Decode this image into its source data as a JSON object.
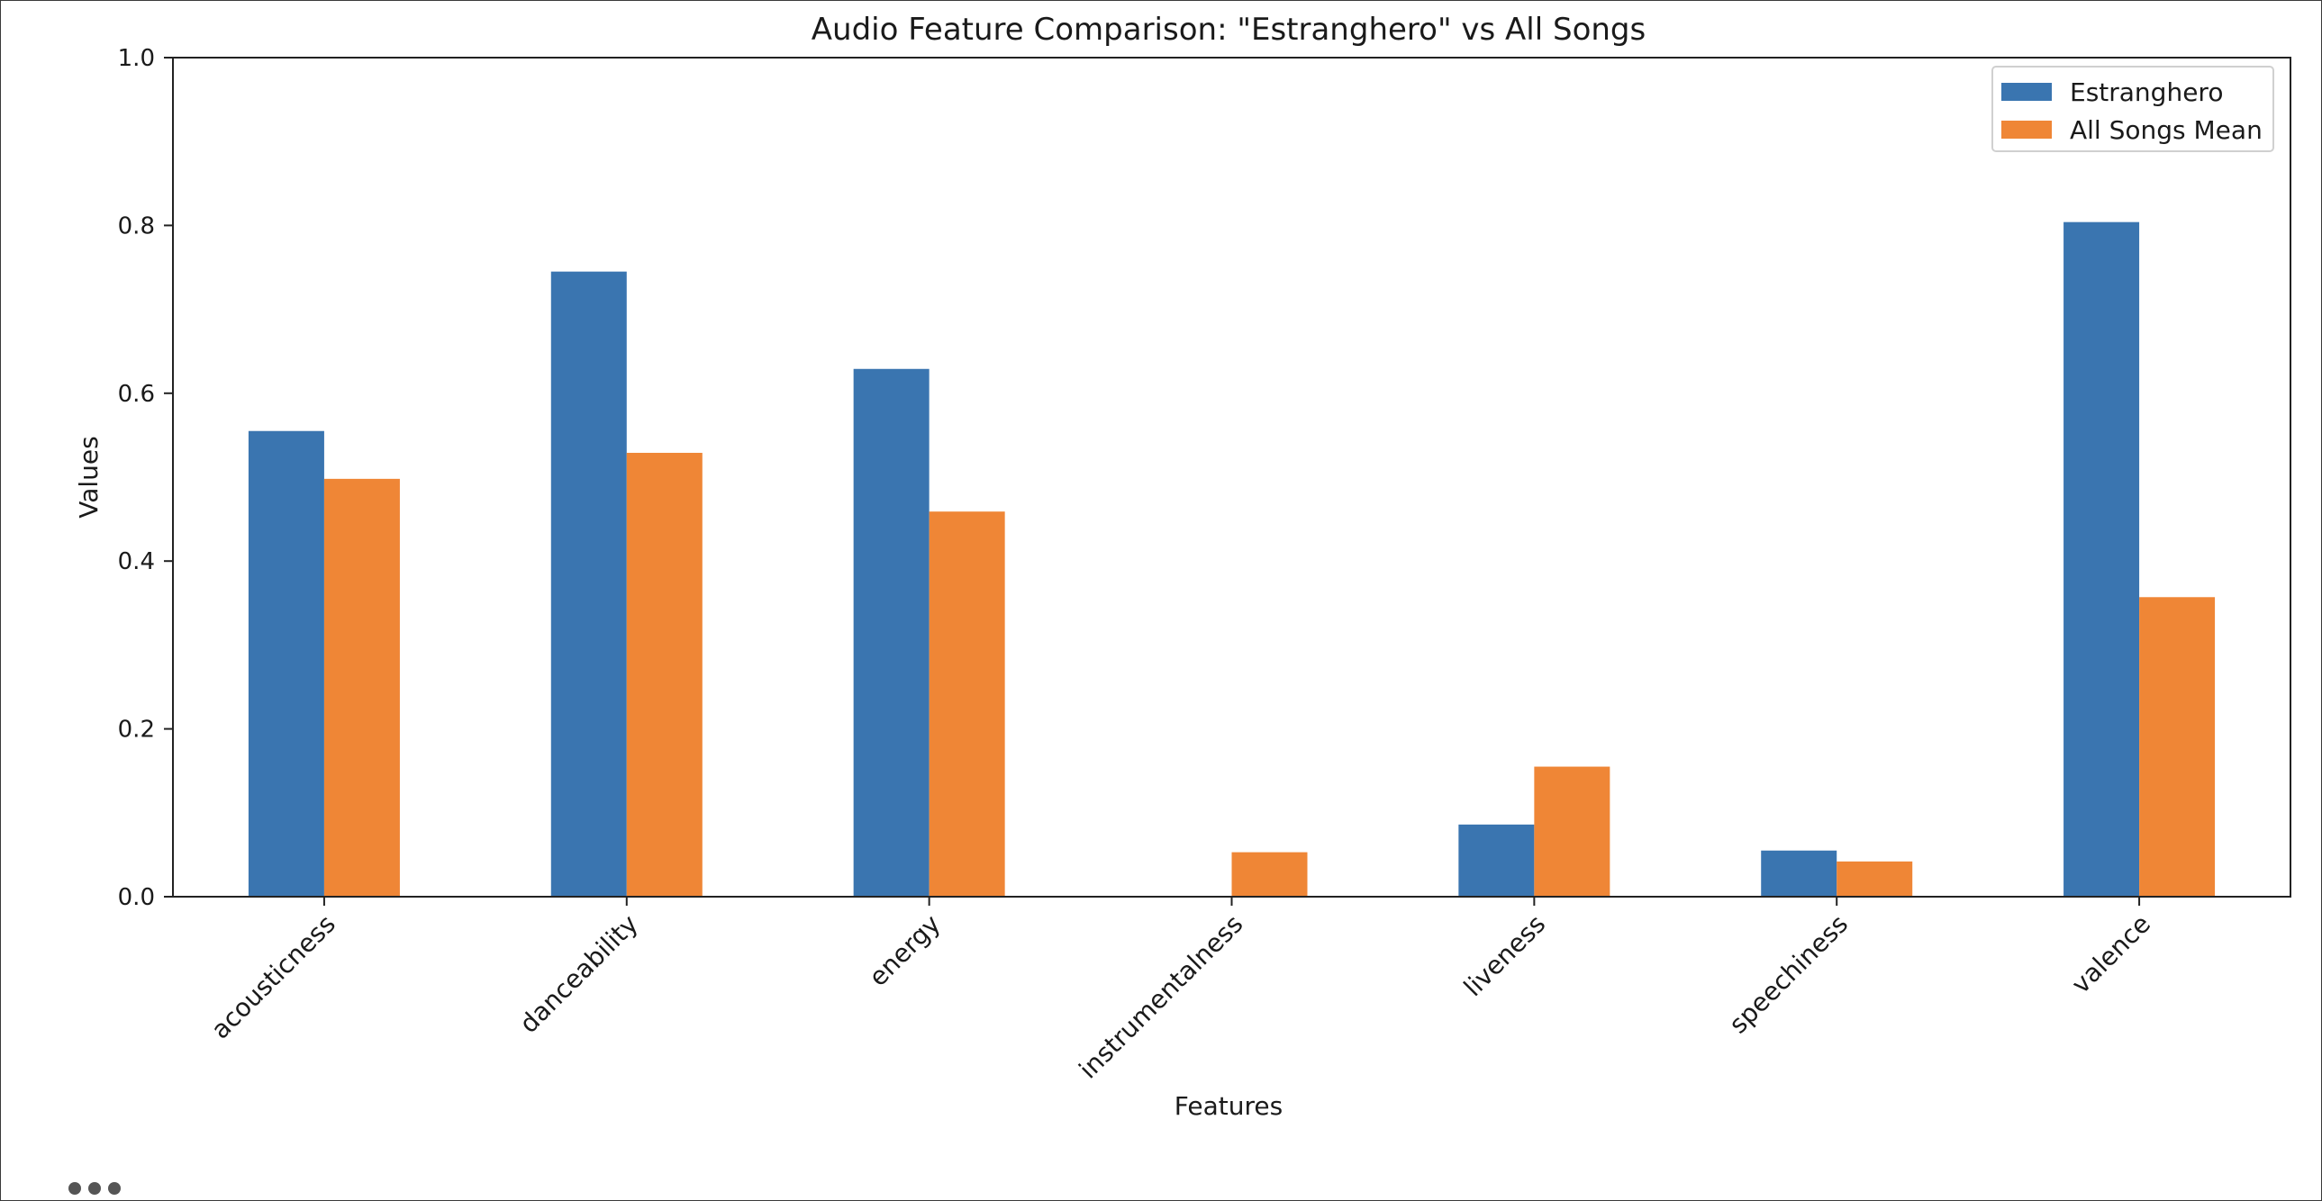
{
  "chart_data": {
    "type": "bar",
    "title": "Audio Feature Comparison: \"Estranghero\" vs All Songs",
    "xlabel": "Features",
    "ylabel": "Values",
    "ylim": [
      0,
      1.0
    ],
    "yticks": [
      0.0,
      0.2,
      0.4,
      0.6,
      0.8,
      1.0
    ],
    "ytick_labels": [
      "0.0",
      "0.2",
      "0.4",
      "0.6",
      "0.8",
      "1.0"
    ],
    "grid": false,
    "legend_position": "top-right",
    "categories": [
      "acousticness",
      "danceability",
      "energy",
      "instrumentalness",
      "liveness",
      "speechiness",
      "valence"
    ],
    "series": [
      {
        "name": "Estranghero",
        "color": "#3a75b0",
        "values": [
          0.555,
          0.745,
          0.629,
          0.0,
          0.086,
          0.055,
          0.804
        ]
      },
      {
        "name": "All Songs Mean",
        "color": "#ef8636",
        "values": [
          0.498,
          0.529,
          0.459,
          0.053,
          0.155,
          0.042,
          0.357
        ]
      }
    ]
  }
}
